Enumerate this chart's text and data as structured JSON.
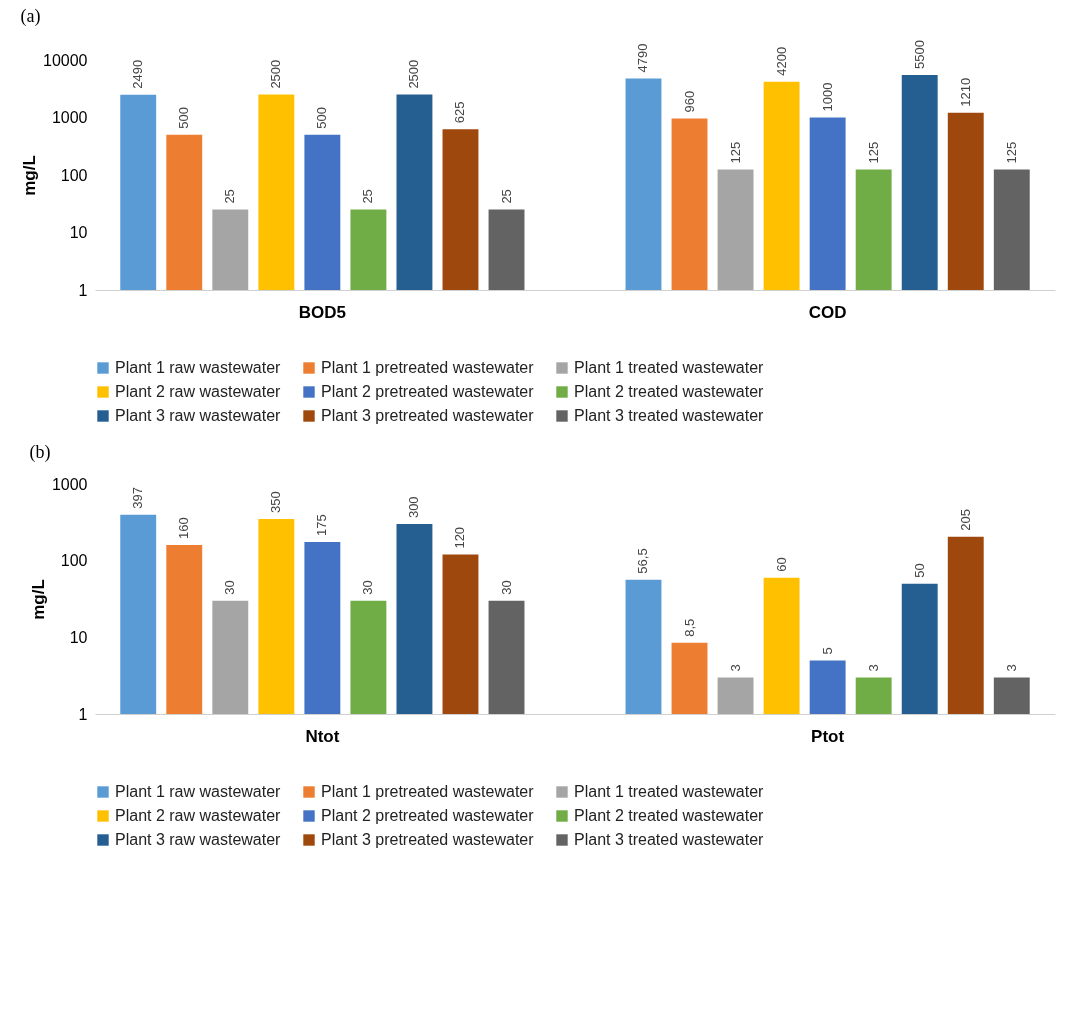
{
  "chart_data": [
    {
      "type": "bar",
      "title": "(a)",
      "ylabel": "mg/L",
      "categories": [
        "BOD5",
        "COD"
      ],
      "log": true,
      "ylim": [
        1,
        10000
      ],
      "yticks": [
        1,
        10,
        100,
        1000,
        10000
      ],
      "grid": false,
      "legend": "bottom",
      "data_labels": true,
      "series": [
        {
          "name": "Plant 1 raw wastewater",
          "color": "#5b9bd5",
          "values": [
            2490,
            4790
          ]
        },
        {
          "name": "Plant 1 pretreated wastewater",
          "color": "#ed7d31",
          "values": [
            500,
            960
          ]
        },
        {
          "name": "Plant 1 treated wastewater",
          "color": "#a5a5a5",
          "values": [
            25,
            125
          ]
        },
        {
          "name": "Plant 2 raw wastewater",
          "color": "#ffc000",
          "values": [
            2500,
            4200
          ]
        },
        {
          "name": "Plant 2 pretreated wastewater",
          "color": "#4472c4",
          "values": [
            500,
            1000
          ]
        },
        {
          "name": "Plant 2 treated wastewater",
          "color": "#70ad47",
          "values": [
            25,
            125
          ]
        },
        {
          "name": "Plant 3 raw wastewater",
          "color": "#255e91",
          "values": [
            2500,
            5500
          ]
        },
        {
          "name": "Plant 3 pretreated wastewater",
          "color": "#9e480e",
          "values": [
            625,
            1210
          ]
        },
        {
          "name": "Plant 3 treated wastewater",
          "color": "#636363",
          "values": [
            25,
            125
          ]
        }
      ]
    },
    {
      "type": "bar",
      "title": "(b)",
      "ylabel": "mg/L",
      "categories": [
        "Ntot",
        "Ptot"
      ],
      "log": true,
      "ylim": [
        1,
        1000
      ],
      "yticks": [
        1,
        10,
        100,
        1000
      ],
      "grid": false,
      "legend": "bottom",
      "series": [
        {
          "name": "Plant 1 raw wastewater",
          "color": "#5b9bd5",
          "values": [
            397,
            56.5
          ],
          "value_labels": [
            "397",
            "56,5"
          ]
        },
        {
          "name": "Plant 1 pretreated wastewater",
          "color": "#ed7d31",
          "values": [
            160,
            8.5
          ],
          "value_labels": [
            "160",
            "8,5"
          ]
        },
        {
          "name": "Plant 1 treated wastewater",
          "color": "#a5a5a5",
          "values": [
            30,
            3
          ],
          "value_labels": [
            "30",
            "3"
          ]
        },
        {
          "name": "Plant 2 raw wastewater",
          "color": "#ffc000",
          "values": [
            350,
            60
          ],
          "value_labels": [
            "350",
            "60"
          ]
        },
        {
          "name": "Plant 2 pretreated wastewater",
          "color": "#4472c4",
          "values": [
            175,
            5
          ],
          "value_labels": [
            "175",
            "5"
          ]
        },
        {
          "name": "Plant 2 treated wastewater",
          "color": "#70ad47",
          "values": [
            30,
            3
          ],
          "value_labels": [
            "30",
            "3"
          ]
        },
        {
          "name": "Plant 3 raw wastewater",
          "color": "#255e91",
          "values": [
            300,
            50
          ],
          "value_labels": [
            "300",
            "50"
          ]
        },
        {
          "name": "Plant 3 pretreated wastewater",
          "color": "#9e480e",
          "values": [
            120,
            205
          ],
          "value_labels": [
            "120",
            "205"
          ]
        },
        {
          "name": "Plant 3 treated wastewater",
          "color": "#636363",
          "values": [
            30,
            3
          ],
          "value_labels": [
            "30",
            "3"
          ]
        }
      ]
    }
  ]
}
